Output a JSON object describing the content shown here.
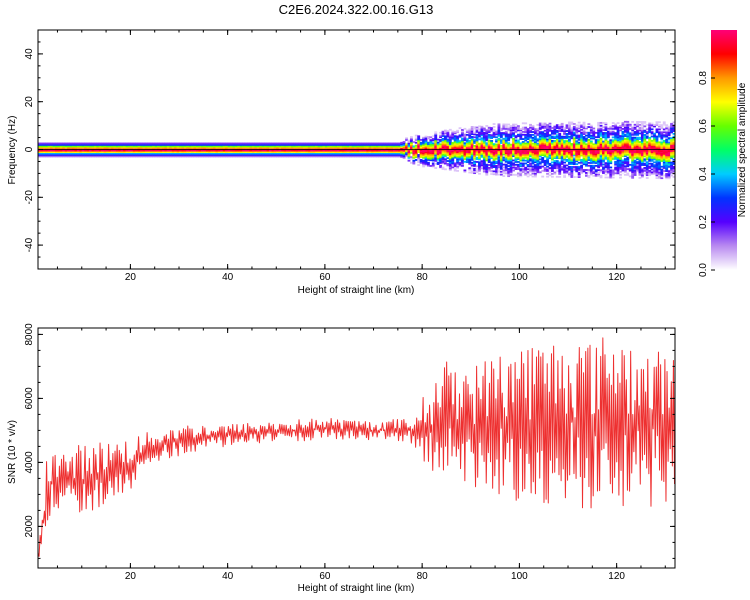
{
  "figure": {
    "title": "C2E6.2024.322.00.16.G13"
  },
  "chart_data": [
    {
      "type": "heatmap",
      "xlabel": "Height of straight line (km)",
      "ylabel": "Frequency (Hz)",
      "xlim": [
        1,
        132
      ],
      "ylim": [
        -50,
        50
      ],
      "x_ticks": [
        20,
        40,
        60,
        80,
        100,
        120
      ],
      "y_ticks": [
        -40,
        -20,
        0,
        20,
        40
      ],
      "colorbar": {
        "label": "Normalized spectral amplitude",
        "range": [
          0,
          1
        ],
        "ticks": [
          "0.0",
          "0.2",
          "0.4",
          "0.6",
          "0.8"
        ],
        "colors": [
          "#ffffff",
          "#b98af0",
          "#5500ff",
          "#0033ff",
          "#00ccff",
          "#00ff66",
          "#66ff00",
          "#ffff00",
          "#ff9900",
          "#ff0000",
          "#ff0077"
        ]
      },
      "band": {
        "center_frequency": 0,
        "core_halfwidth_hz": [
          [
            1,
            1.5
          ],
          [
            75,
            1.5
          ],
          [
            80,
            3
          ],
          [
            132,
            4
          ]
        ],
        "halo_halfwidth_hz": [
          [
            1,
            3
          ],
          [
            75,
            3
          ],
          [
            80,
            6
          ],
          [
            95,
            10
          ],
          [
            132,
            11
          ]
        ]
      },
      "grid": false
    },
    {
      "type": "line",
      "xlabel": "Height of straight line (km)",
      "ylabel": "SNR (10 * v/v)",
      "xlim": [
        1,
        132
      ],
      "ylim": [
        700,
        8200
      ],
      "x_ticks": [
        20,
        40,
        60,
        80,
        100,
        120
      ],
      "y_ticks": [
        2000,
        4000,
        6000,
        8000
      ],
      "series": [
        {
          "color": "#ee3030",
          "envelope": [
            [
              1,
              900,
              1400
            ],
            [
              2,
              1400,
              2600
            ],
            [
              3,
              2000,
              4800
            ],
            [
              5,
              2400,
              4300
            ],
            [
              10,
              2300,
              4600
            ],
            [
              15,
              2700,
              4700
            ],
            [
              20,
              3100,
              4800
            ],
            [
              25,
              4000,
              5000
            ],
            [
              30,
              4200,
              5200
            ],
            [
              40,
              4500,
              5200
            ],
            [
              50,
              4600,
              5300
            ],
            [
              60,
              4700,
              5400
            ],
            [
              70,
              4700,
              5300
            ],
            [
              78,
              4600,
              5400
            ],
            [
              80,
              4000,
              6000
            ],
            [
              85,
              3300,
              7200
            ],
            [
              90,
              3200,
              7000
            ],
            [
              100,
              2600,
              7800
            ],
            [
              105,
              2400,
              7800
            ],
            [
              110,
              2600,
              8000
            ],
            [
              115,
              2500,
              7800
            ],
            [
              120,
              2400,
              8200
            ],
            [
              125,
              2600,
              7500
            ],
            [
              131,
              2600,
              7500
            ]
          ]
        }
      ],
      "grid": false
    }
  ]
}
